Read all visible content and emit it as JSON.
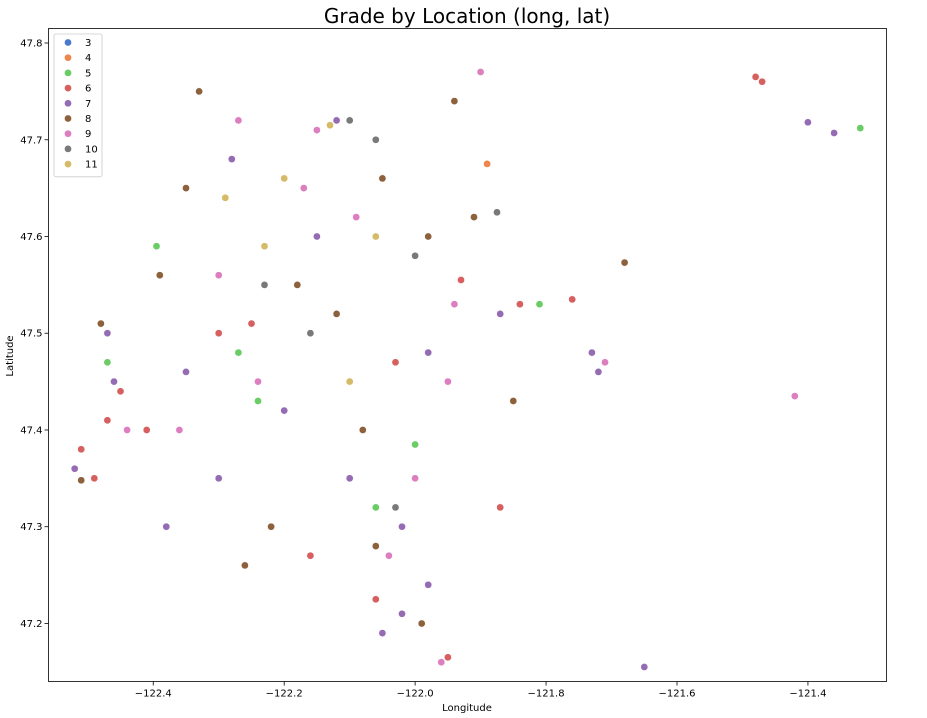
{
  "chart_data": {
    "type": "scatter",
    "title": "Grade by Location (long, lat)",
    "xlabel": "Longitude",
    "ylabel": "Latitude",
    "xlim": [
      -122.56,
      -121.28
    ],
    "ylim": [
      47.14,
      47.815
    ],
    "xticks": [
      -122.4,
      -122.2,
      -122.0,
      -121.8,
      -121.6,
      -121.4
    ],
    "xtick_labels": [
      "−122.4",
      "−122.2",
      "−122.0",
      "−121.8",
      "−121.6",
      "−121.4"
    ],
    "yticks": [
      47.2,
      47.3,
      47.4,
      47.5,
      47.6,
      47.7,
      47.8
    ],
    "ytick_labels": [
      "47.2",
      "47.3",
      "47.4",
      "47.5",
      "47.6",
      "47.7",
      "47.8"
    ],
    "grid": false,
    "legend_position": "top-left",
    "marker_edge_color": "#ffffff",
    "series": [
      {
        "name": "3",
        "color": "#4878d0",
        "points": []
      },
      {
        "name": "4",
        "color": "#ee854a",
        "points": [
          [
            -121.89,
            47.675
          ]
        ]
      },
      {
        "name": "5",
        "color": "#6acc64",
        "points": [
          [
            -122.395,
            47.59
          ],
          [
            -122.47,
            47.47
          ],
          [
            -122.27,
            47.48
          ],
          [
            -121.81,
            47.53
          ],
          [
            -122.06,
            47.32
          ],
          [
            -121.32,
            47.712
          ],
          [
            -122.24,
            47.43
          ],
          [
            -122.0,
            47.385
          ]
        ]
      },
      {
        "name": "6",
        "color": "#d65f5f",
        "points": [
          [
            -121.48,
            47.765
          ],
          [
            -121.47,
            47.76
          ],
          [
            -122.51,
            47.38
          ],
          [
            -122.49,
            47.35
          ],
          [
            -122.47,
            47.41
          ],
          [
            -122.45,
            47.44
          ],
          [
            -121.87,
            47.32
          ],
          [
            -121.95,
            47.165
          ],
          [
            -122.06,
            47.225
          ],
          [
            -122.41,
            47.4
          ],
          [
            -121.76,
            47.535
          ],
          [
            -122.03,
            47.47
          ],
          [
            -122.25,
            47.51
          ],
          [
            -121.93,
            47.555
          ],
          [
            -121.84,
            47.53
          ],
          [
            -122.16,
            47.27
          ],
          [
            -122.3,
            47.5
          ]
        ]
      },
      {
        "name": "7",
        "color": "#956cb4",
        "points": [
          [
            -121.65,
            47.155
          ],
          [
            -121.4,
            47.718
          ],
          [
            -121.36,
            47.707
          ],
          [
            -122.52,
            47.36
          ],
          [
            -122.46,
            47.45
          ],
          [
            -122.47,
            47.5
          ],
          [
            -121.73,
            47.48
          ],
          [
            -121.72,
            47.46
          ],
          [
            -122.05,
            47.19
          ],
          [
            -122.02,
            47.21
          ],
          [
            -121.98,
            47.24
          ],
          [
            -122.12,
            47.72
          ],
          [
            -122.15,
            47.6
          ],
          [
            -122.2,
            47.42
          ],
          [
            -122.1,
            47.35
          ],
          [
            -122.3,
            47.35
          ],
          [
            -122.35,
            47.46
          ],
          [
            -122.28,
            47.68
          ],
          [
            -122.1,
            47.45
          ],
          [
            -121.98,
            47.48
          ],
          [
            -121.87,
            47.52
          ],
          [
            -122.38,
            47.3
          ],
          [
            -122.02,
            47.3
          ]
        ]
      },
      {
        "name": "8",
        "color": "#8c613c",
        "points": [
          [
            -121.68,
            47.573
          ],
          [
            -121.85,
            47.43
          ],
          [
            -122.51,
            47.348
          ],
          [
            -122.48,
            47.51
          ],
          [
            -121.91,
            47.62
          ],
          [
            -121.94,
            47.74
          ],
          [
            -122.05,
            47.66
          ],
          [
            -122.26,
            47.26
          ],
          [
            -122.12,
            47.52
          ],
          [
            -121.98,
            47.6
          ],
          [
            -122.18,
            47.55
          ],
          [
            -122.33,
            47.75
          ],
          [
            -122.08,
            47.4
          ],
          [
            -122.35,
            47.65
          ],
          [
            -122.22,
            47.3
          ],
          [
            -122.39,
            47.56
          ],
          [
            -121.99,
            47.2
          ],
          [
            -122.06,
            47.28
          ]
        ]
      },
      {
        "name": "9",
        "color": "#dc7ec0",
        "points": [
          [
            -121.42,
            47.435
          ],
          [
            -122.44,
            47.4
          ],
          [
            -121.71,
            47.47
          ],
          [
            -121.96,
            47.16
          ],
          [
            -121.9,
            47.77
          ],
          [
            -122.15,
            47.71
          ],
          [
            -122.0,
            47.35
          ],
          [
            -122.24,
            47.45
          ],
          [
            -122.3,
            47.56
          ],
          [
            -122.09,
            47.62
          ],
          [
            -122.36,
            47.4
          ],
          [
            -121.95,
            47.45
          ],
          [
            -122.17,
            47.65
          ],
          [
            -121.94,
            47.53
          ],
          [
            -122.27,
            47.72
          ],
          [
            -122.04,
            47.27
          ]
        ]
      },
      {
        "name": "10",
        "color": "#797979",
        "points": [
          [
            -121.875,
            47.625
          ],
          [
            -122.1,
            47.72
          ],
          [
            -122.0,
            47.58
          ],
          [
            -122.23,
            47.55
          ],
          [
            -122.06,
            47.7
          ],
          [
            -122.16,
            47.5
          ],
          [
            -122.03,
            47.32
          ]
        ]
      },
      {
        "name": "11",
        "color": "#d5bb67",
        "points": [
          [
            -122.13,
            47.715
          ],
          [
            -122.2,
            47.66
          ],
          [
            -122.06,
            47.6
          ],
          [
            -122.23,
            47.59
          ],
          [
            -122.29,
            47.64
          ],
          [
            -122.1,
            47.45
          ]
        ]
      }
    ]
  }
}
